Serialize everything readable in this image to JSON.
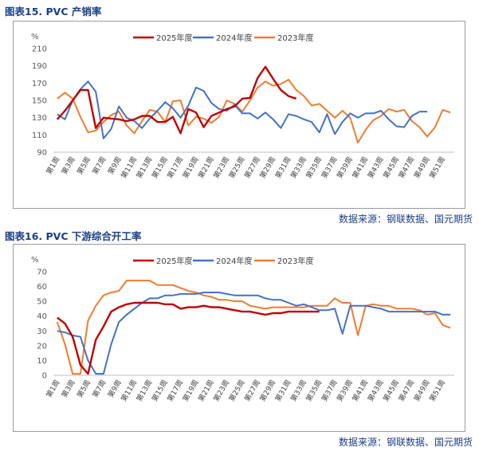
{
  "figures": [
    {
      "title": "图表15.  PVC 产销率",
      "source": "数据来源：钢联数据、国元期货"
    },
    {
      "title": "图表16.  PVC 下游综合开工率",
      "source": "数据来源：钢联数据、国元期货"
    }
  ],
  "colors": {
    "s2025": "#c00000",
    "s2024": "#4472c4",
    "s2023": "#ed7d31",
    "title": "#1b3f86"
  },
  "chart_data": [
    {
      "type": "line",
      "title": "",
      "unit_label": "%",
      "ylim": [
        90,
        210
      ],
      "yticks": [
        90,
        110,
        130,
        150,
        170,
        190,
        210
      ],
      "x_count": 52,
      "x_tick_labels": [
        "第1周",
        "第3周",
        "第5周",
        "第7周",
        "第9周",
        "第11周",
        "第13周",
        "第15周",
        "第17周",
        "第19周",
        "第21周",
        "第23周",
        "第25周",
        "第27周",
        "第29周",
        "第31周",
        "第33周",
        "第35周",
        "第37周",
        "第39周",
        "第41周",
        "第43周",
        "第45周",
        "第47周",
        "第49周",
        "第51周"
      ],
      "legend_position": "top",
      "grid": false,
      "series": [
        {
          "name": "2025年度",
          "color_key": "s2025",
          "values": [
            128,
            138,
            150,
            162,
            162,
            118,
            130,
            129,
            128,
            126,
            128,
            132,
            132,
            125,
            125,
            131,
            112,
            140,
            136,
            119,
            132,
            136,
            140,
            143,
            152,
            153,
            176,
            189,
            175,
            162,
            155,
            152
          ]
        },
        {
          "name": "2024年度",
          "color_key": "s2024",
          "values": [
            134,
            128,
            150,
            163,
            172,
            160,
            106,
            117,
            143,
            130,
            126,
            118,
            129,
            138,
            148,
            141,
            130,
            144,
            165,
            161,
            147,
            140,
            138,
            145,
            135,
            135,
            129,
            136,
            128,
            118,
            134,
            132,
            128,
            125,
            113,
            134,
            111,
            125,
            135,
            130,
            135,
            135,
            138,
            128,
            120,
            119,
            132,
            137,
            137
          ]
        },
        {
          "name": "2023年度",
          "color_key": "s2023",
          "values": [
            152,
            159,
            152,
            131,
            113,
            115,
            125,
            133,
            137,
            121,
            112,
            126,
            139,
            137,
            125,
            149,
            150,
            121,
            131,
            129,
            124,
            131,
            150,
            146,
            137,
            150,
            165,
            172,
            167,
            169,
            174,
            162,
            155,
            144,
            146,
            138,
            130,
            138,
            130,
            101,
            116,
            127,
            132,
            140,
            137,
            139,
            126,
            119,
            108,
            119,
            139,
            136
          ]
        }
      ]
    },
    {
      "type": "line",
      "title": "",
      "unit_label": "%",
      "ylim": [
        0,
        70
      ],
      "yticks": [
        0,
        10,
        20,
        30,
        40,
        50,
        60,
        70
      ],
      "x_count": 52,
      "x_tick_labels": [
        "第1周",
        "第3周",
        "第5周",
        "第7周",
        "第9周",
        "第11周",
        "第13周",
        "第15周",
        "第17周",
        "第19周",
        "第21周",
        "第23周",
        "第25周",
        "第27周",
        "第29周",
        "第31周",
        "第33周",
        "第35周",
        "第37周",
        "第39周",
        "第41周",
        "第43周",
        "第45周",
        "第47周",
        "第49周",
        "第51周"
      ],
      "legend_position": "top",
      "grid": false,
      "series": [
        {
          "name": "2025年度",
          "color_key": "s2025",
          "values": [
            39,
            35,
            26,
            7,
            1,
            24,
            33,
            43,
            46,
            48,
            49,
            49,
            49,
            49,
            48,
            48,
            45,
            46,
            46,
            47,
            46,
            46,
            45,
            44,
            43,
            43,
            42,
            41,
            42,
            42,
            43,
            43,
            43,
            43,
            43
          ]
        },
        {
          "name": "2024年度",
          "color_key": "s2024",
          "values": [
            30,
            29,
            27,
            26,
            10,
            1,
            1,
            21,
            36,
            41,
            45,
            49,
            52,
            52,
            54,
            54,
            55,
            55,
            55,
            56,
            56,
            56,
            55,
            54,
            54,
            54,
            54,
            52,
            51,
            51,
            49,
            47,
            48,
            46,
            44,
            44,
            45,
            28,
            47,
            47,
            47,
            46,
            45,
            43,
            43,
            43,
            43,
            43,
            43,
            43,
            41,
            41
          ]
        },
        {
          "name": "2023年度",
          "color_key": "s2023",
          "values": [
            36,
            21,
            1,
            1,
            37,
            47,
            54,
            56,
            57,
            64,
            64,
            64,
            64,
            61,
            61,
            61,
            59,
            57,
            56,
            54,
            53,
            51,
            51,
            50,
            50,
            47,
            46,
            45,
            46,
            46,
            46,
            46,
            46,
            47,
            47,
            47,
            52,
            49,
            49,
            27,
            47,
            48,
            47,
            47,
            45,
            45,
            45,
            44,
            41,
            42,
            34,
            32
          ]
        }
      ]
    }
  ]
}
